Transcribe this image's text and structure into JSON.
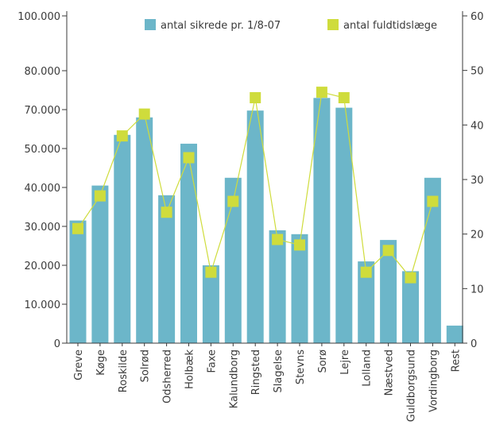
{
  "chart_data": {
    "type": "bar",
    "categories": [
      "Greve",
      "Køge",
      "Roskilde",
      "Solrød",
      "Odsherred",
      "Holbæk",
      "Faxe",
      "Kalundborg",
      "Ringsted",
      "Slagelse",
      "Stevns",
      "Sorø",
      "Lejre",
      "Lolland",
      "Næstved",
      "Guldborgsund",
      "Vordingborg",
      "Rest"
    ],
    "series": [
      {
        "name": "antal sikrede pr. 1/8-07",
        "kind": "bar",
        "axis": "left",
        "color": "#6cb6c9",
        "values": [
          31500,
          40500,
          57000,
          66000,
          38000,
          52500,
          20000,
          42500,
          69500,
          29000,
          28000,
          73000,
          70500,
          21000,
          26500,
          18500,
          42500,
          4500
        ]
      },
      {
        "name": "antal fuldtidslæge",
        "kind": "line",
        "axis": "right",
        "color": "#cfdc3c",
        "values": [
          21,
          27,
          38,
          42,
          24,
          34,
          13,
          26,
          45,
          19,
          18,
          46,
          45,
          13,
          17,
          12,
          26,
          null
        ]
      }
    ],
    "y_left": {
      "ticks": [
        0,
        10000,
        20000,
        30000,
        40000,
        50000,
        70000,
        80000,
        100000
      ],
      "tick_labels": [
        "0",
        "10.000",
        "20.000",
        "30.000",
        "40.000",
        "50.000",
        "70.000",
        "80.000",
        "100.000"
      ]
    },
    "y_right": {
      "ticks": [
        0,
        10,
        20,
        30,
        40,
        50,
        60
      ],
      "tick_labels": [
        "0",
        "10",
        "20",
        "30",
        "40",
        "50",
        "60"
      ]
    },
    "legend": {
      "placement": "top-right"
    },
    "grid": false
  }
}
